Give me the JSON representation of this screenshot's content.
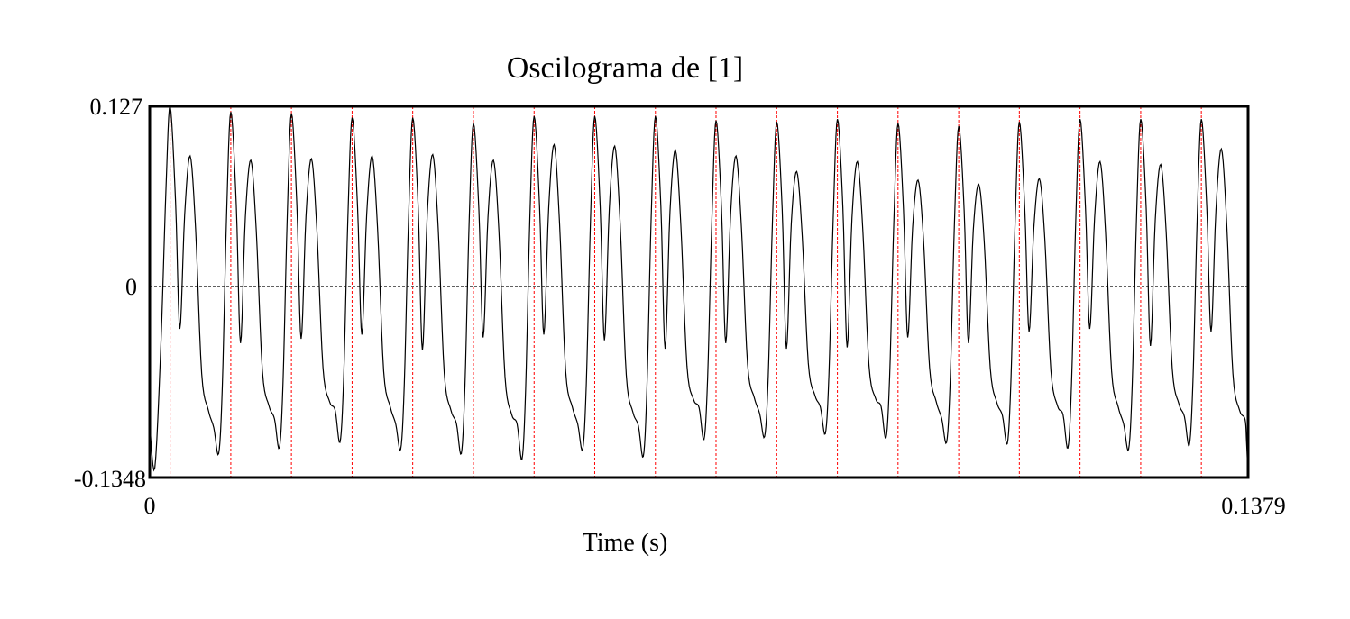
{
  "chart_data": {
    "type": "line",
    "title": "Oscilograma de [1]",
    "xlabel": "Time (s)",
    "ylabel": "",
    "xlim": [
      0,
      0.1379
    ],
    "ylim": [
      -0.1348,
      0.127
    ],
    "x_tick_labels": [
      "0",
      "0.1379"
    ],
    "y_tick_labels": [
      "0.127",
      "0",
      "-0.1348"
    ],
    "grid": false,
    "zero_line": true,
    "legend": "none",
    "colors": {
      "waveform": "#000000",
      "period_markers": "#ff0000",
      "zero_line": "#000000"
    },
    "period_markers_s": [
      0.00256,
      0.01018,
      0.01779,
      0.02541,
      0.03302,
      0.04064,
      0.04826,
      0.05587,
      0.06349,
      0.0711,
      0.07872,
      0.08634,
      0.09395,
      0.10157,
      0.10918,
      0.1168,
      0.12442,
      0.13203
    ],
    "series": [
      {
        "values": {
          "start_s": 0,
          "end_s": 0.1379,
          "start_value": -0.098,
          "end_value": -0.1348,
          "period_s": 0.00762,
          "cycle_shape": [
            [
              0.0,
              0.127,
              "main peak"
            ],
            [
              0.09,
              0.06
            ],
            [
              0.16,
              -0.028,
              "trough"
            ],
            [
              0.24,
              0.05
            ],
            [
              0.33,
              0.091,
              "secondary peak"
            ],
            [
              0.42,
              0.04
            ],
            [
              0.52,
              -0.06
            ],
            [
              0.63,
              -0.085
            ],
            [
              0.72,
              -0.095
            ],
            [
              0.8,
              -0.115,
              "minimum"
            ],
            [
              0.86,
              -0.07
            ],
            [
              0.93,
              0.05
            ],
            [
              1.0,
              0.127
            ]
          ],
          "peaks": [
            0.127,
            0.123,
            0.122,
            0.119,
            0.119,
            0.115,
            0.12,
            0.12,
            0.12,
            0.117,
            0.116,
            0.118,
            0.115,
            0.113,
            0.116,
            0.118,
            0.118,
            0.118
          ],
          "secondary_peaks": [
            0.092,
            0.089,
            0.09,
            0.092,
            0.093,
            0.089,
            0.1,
            0.099,
            0.096,
            0.092,
            0.081,
            0.088,
            0.075,
            0.072,
            0.076,
            0.088,
            0.086,
            0.097
          ],
          "troughs": [
            -0.03,
            -0.04,
            -0.037,
            -0.034,
            -0.045,
            -0.036,
            -0.034,
            -0.038,
            -0.044,
            -0.04,
            -0.044,
            -0.043,
            -0.036,
            -0.04,
            -0.032,
            -0.03,
            -0.042,
            -0.032
          ],
          "minimums": [
            -0.118,
            -0.114,
            -0.11,
            -0.115,
            -0.118,
            -0.122,
            -0.115,
            -0.12,
            -0.108,
            -0.106,
            -0.104,
            -0.107,
            -0.11,
            -0.111,
            -0.114,
            -0.115,
            -0.112,
            -0.118
          ]
        }
      }
    ]
  }
}
